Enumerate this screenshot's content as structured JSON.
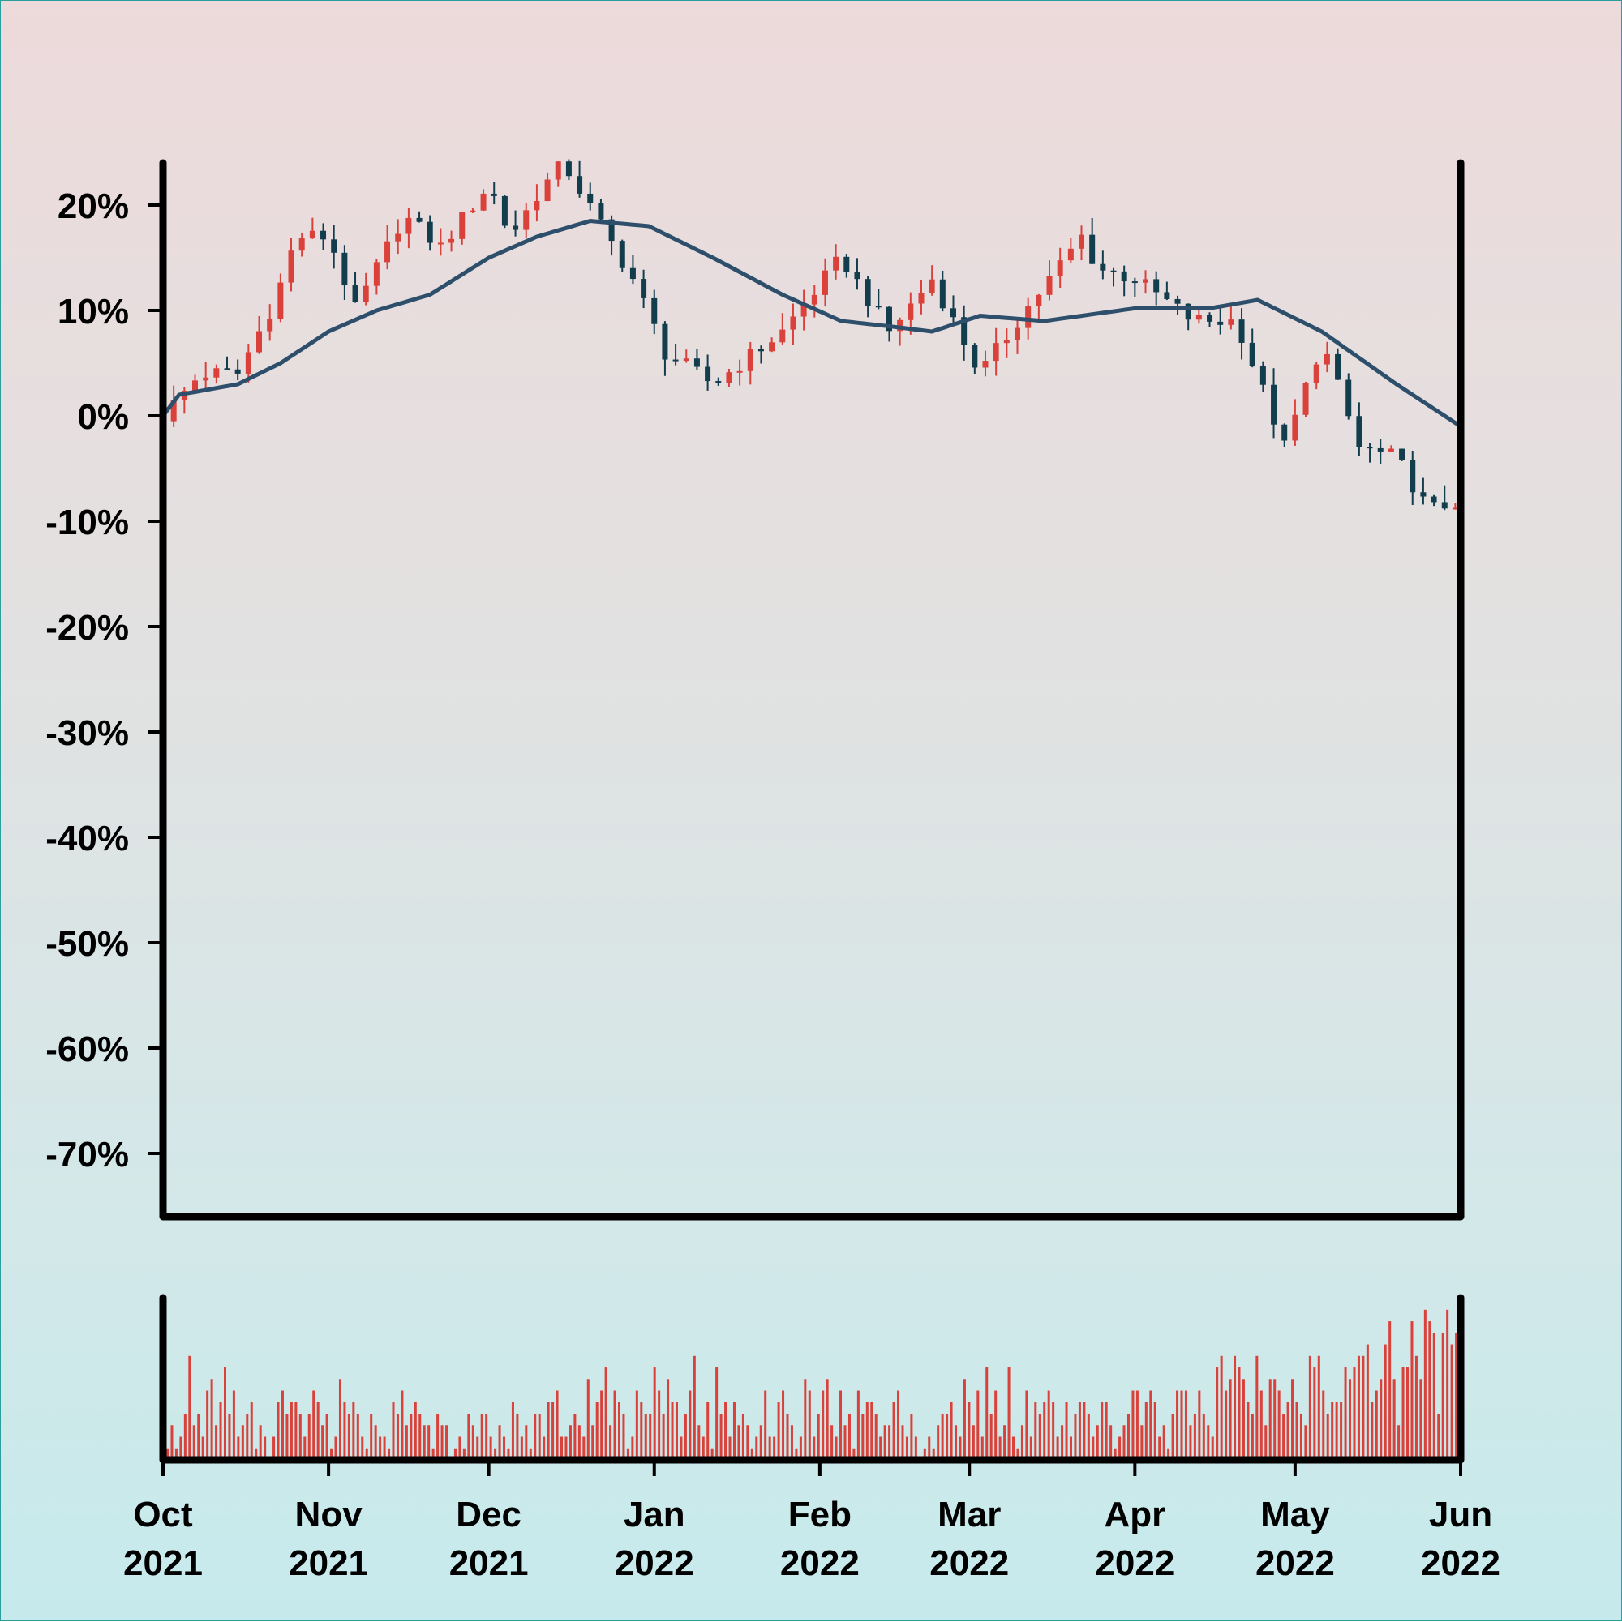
{
  "chart_data": {
    "type": "candlestick",
    "title": "",
    "ylabel": "",
    "xlabel": "",
    "y_unit": "%",
    "ylim": [
      -76,
      24
    ],
    "y_ticks": [
      20,
      10,
      0,
      -10,
      -20,
      -30,
      -40,
      -50,
      -60,
      -70
    ],
    "x_range": [
      "2021-10-01",
      "2022-06-01"
    ],
    "x_ticks": [
      {
        "date": "2021-10-01",
        "month": "Oct",
        "year": "2021"
      },
      {
        "date": "2021-11-01",
        "month": "Nov",
        "year": "2021"
      },
      {
        "date": "2021-12-01",
        "month": "Dec",
        "year": "2021"
      },
      {
        "date": "2022-01-01",
        "month": "Jan",
        "year": "2022"
      },
      {
        "date": "2022-02-01",
        "month": "Feb",
        "year": "2022"
      },
      {
        "date": "2022-03-01",
        "month": "Mar",
        "year": "2022"
      },
      {
        "date": "2022-04-01",
        "month": "Apr",
        "year": "2022"
      },
      {
        "date": "2022-05-01",
        "month": "May",
        "year": "2022"
      },
      {
        "date": "2022-06-01",
        "month": "Jun",
        "year": "2022"
      }
    ],
    "grid": false,
    "colors": {
      "up": "#d9413a",
      "down": "#123d4d",
      "moving_average": "#2e4f6b",
      "volume": "#d9413a",
      "axis": "#000000"
    },
    "price_path": [
      {
        "date": "2021-10-01",
        "close": 0
      },
      {
        "date": "2021-10-08",
        "close": 4
      },
      {
        "date": "2021-10-15",
        "close": 4
      },
      {
        "date": "2021-10-22",
        "close": 11
      },
      {
        "date": "2021-10-26",
        "close": 17
      },
      {
        "date": "2021-11-01",
        "close": 17
      },
      {
        "date": "2021-11-06",
        "close": 10
      },
      {
        "date": "2021-11-15",
        "close": 19
      },
      {
        "date": "2021-11-22",
        "close": 16
      },
      {
        "date": "2021-12-01",
        "close": 22
      },
      {
        "date": "2021-12-05",
        "close": 17
      },
      {
        "date": "2021-12-10",
        "close": 21
      },
      {
        "date": "2021-12-15",
        "close": 24
      },
      {
        "date": "2021-12-28",
        "close": 13
      },
      {
        "date": "2022-01-03",
        "close": 6
      },
      {
        "date": "2022-01-12",
        "close": 3
      },
      {
        "date": "2022-01-25",
        "close": 8
      },
      {
        "date": "2022-02-05",
        "close": 15
      },
      {
        "date": "2022-02-14",
        "close": 8
      },
      {
        "date": "2022-02-22",
        "close": 13
      },
      {
        "date": "2022-03-03",
        "close": 4
      },
      {
        "date": "2022-03-10",
        "close": 9
      },
      {
        "date": "2022-03-22",
        "close": 17
      },
      {
        "date": "2022-03-25",
        "close": 14
      },
      {
        "date": "2022-04-01",
        "close": 13
      },
      {
        "date": "2022-04-12",
        "close": 9
      },
      {
        "date": "2022-04-20",
        "close": 9
      },
      {
        "date": "2022-04-29",
        "close": -3
      },
      {
        "date": "2022-05-06",
        "close": 7
      },
      {
        "date": "2022-05-13",
        "close": -3
      },
      {
        "date": "2022-05-20",
        "close": -4
      },
      {
        "date": "2022-05-26",
        "close": -9
      },
      {
        "date": "2022-06-01",
        "close": -8
      }
    ],
    "moving_average_path": [
      {
        "date": "2021-10-01",
        "value": 0
      },
      {
        "date": "2021-10-04",
        "value": 2
      },
      {
        "date": "2021-10-15",
        "value": 3
      },
      {
        "date": "2021-10-23",
        "value": 5
      },
      {
        "date": "2021-11-01",
        "value": 8
      },
      {
        "date": "2021-11-10",
        "value": 10
      },
      {
        "date": "2021-11-20",
        "value": 11.5
      },
      {
        "date": "2021-12-01",
        "value": 15
      },
      {
        "date": "2021-12-10",
        "value": 17
      },
      {
        "date": "2021-12-20",
        "value": 18.5
      },
      {
        "date": "2021-12-31",
        "value": 18
      },
      {
        "date": "2022-01-12",
        "value": 15
      },
      {
        "date": "2022-01-25",
        "value": 11.5
      },
      {
        "date": "2022-02-05",
        "value": 9
      },
      {
        "date": "2022-02-14",
        "value": 8.5
      },
      {
        "date": "2022-02-22",
        "value": 8
      },
      {
        "date": "2022-03-03",
        "value": 9.5
      },
      {
        "date": "2022-03-15",
        "value": 9
      },
      {
        "date": "2022-04-01",
        "value": 10.2
      },
      {
        "date": "2022-04-15",
        "value": 10.2
      },
      {
        "date": "2022-04-24",
        "value": 11
      },
      {
        "date": "2022-05-06",
        "value": 8
      },
      {
        "date": "2022-05-20",
        "value": 3
      },
      {
        "date": "2022-06-01",
        "value": -1
      }
    ],
    "volume": [
      1,
      3,
      1,
      2,
      4,
      9,
      3,
      4,
      2,
      6,
      7,
      3,
      5,
      8,
      4,
      6,
      2,
      3,
      4,
      5,
      1,
      3,
      2,
      0,
      2,
      5,
      6,
      4,
      5,
      5,
      4,
      2,
      4,
      6,
      5,
      3,
      4,
      1,
      2,
      7,
      5,
      4,
      5,
      4,
      2,
      1,
      4,
      3,
      2,
      2,
      1,
      5,
      4,
      6,
      3,
      4,
      5,
      4,
      3,
      3,
      1,
      4,
      3,
      3,
      0,
      1,
      2,
      1,
      4,
      3,
      2,
      4,
      4,
      2,
      1,
      3,
      2,
      1,
      5,
      4,
      2,
      3,
      1,
      4,
      4,
      2,
      5,
      5,
      6,
      2,
      2,
      3,
      4,
      3,
      2,
      7,
      3,
      5,
      6,
      8,
      3,
      6,
      5,
      4,
      1,
      2,
      6,
      5,
      4,
      4,
      8,
      6,
      4,
      7,
      5,
      5,
      2,
      4,
      6,
      9,
      3,
      2,
      5,
      1,
      8,
      4,
      5,
      2,
      5,
      3,
      4,
      3,
      1,
      2,
      3,
      6,
      2,
      2,
      5,
      6,
      4,
      3,
      1,
      2,
      7,
      6,
      2,
      4,
      6,
      7,
      3,
      2,
      6,
      3,
      4,
      1,
      6,
      4,
      5,
      5,
      4,
      2,
      3,
      3,
      5,
      6,
      3,
      2,
      4,
      2,
      0,
      1,
      2,
      1,
      3,
      4,
      4,
      5,
      3,
      2,
      7,
      5,
      3,
      6,
      2,
      8,
      4,
      6,
      2,
      3,
      8,
      2,
      1,
      3,
      6,
      2,
      5,
      4,
      5,
      6,
      5,
      2,
      3,
      5,
      2,
      4,
      5,
      5,
      4,
      2,
      3,
      5,
      5,
      3,
      1,
      2,
      3,
      4,
      6,
      6,
      3,
      5,
      6,
      5,
      2,
      3,
      1,
      4,
      6,
      6,
      6,
      3,
      4,
      6,
      4,
      3,
      2,
      8,
      9,
      6,
      7,
      9,
      8,
      7,
      5,
      4,
      9,
      6,
      3,
      7,
      7,
      6,
      4,
      5,
      7,
      5,
      4,
      3,
      9,
      8,
      9,
      6,
      4,
      5,
      5,
      5,
      8,
      7,
      8,
      9,
      9,
      10,
      5,
      6,
      7,
      10,
      12,
      7,
      3,
      8,
      8,
      12,
      9,
      7,
      13,
      12,
      11,
      4,
      11,
      13,
      10,
      11,
      10
    ]
  }
}
